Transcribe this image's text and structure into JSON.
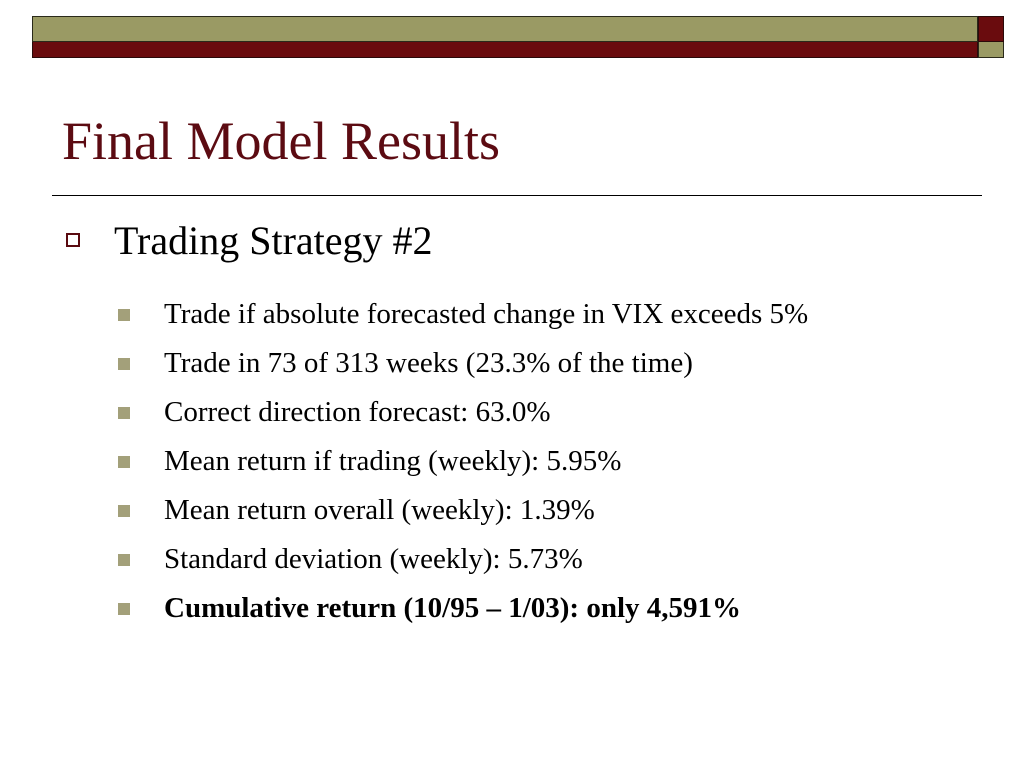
{
  "colors": {
    "accent_olive": "#9a9a64",
    "accent_darkred": "#6a0c0e",
    "title": "#5c0b12",
    "bullet_square": "#a3a07a",
    "bullet_outline": "#5a0a10"
  },
  "slide": {
    "title": "Final Model Results",
    "bullet": {
      "icon": "hollow-square-icon",
      "text": "Trading Strategy #2"
    },
    "sub_bullets": [
      {
        "text": "Trade if absolute forecasted change in VIX exceeds 5%",
        "bold": false
      },
      {
        "text": "Trade in 73 of 313 weeks (23.3% of the time)",
        "bold": false
      },
      {
        "text": "Correct direction forecast: 63.0%",
        "bold": false
      },
      {
        "text": "Mean return if trading (weekly): 5.95%",
        "bold": false
      },
      {
        "text": "Mean return overall (weekly): 1.39%",
        "bold": false
      },
      {
        "text": "Standard deviation (weekly): 5.73%",
        "bold": false
      },
      {
        "text": "Cumulative return (10/95 – 1/03): only 4,591%",
        "bold": true
      }
    ]
  }
}
